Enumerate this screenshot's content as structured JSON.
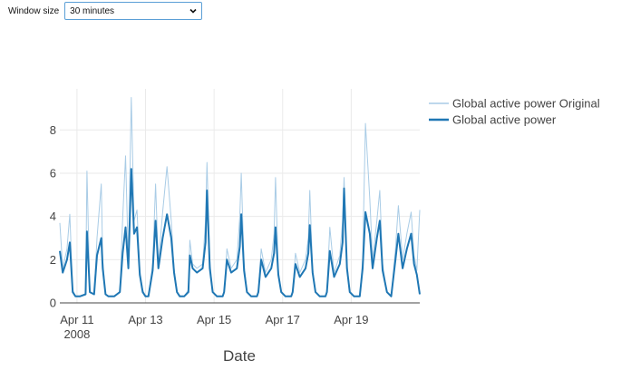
{
  "controls": {
    "window_size_label": "Window size",
    "window_size_value": "30 minutes"
  },
  "colors": {
    "original": "#a9cce6",
    "smoothed": "#1f77b4",
    "grid": "#eaeaea",
    "zero_line": "#444444"
  },
  "chart_data": {
    "type": "line",
    "title": "",
    "xlabel": "Date",
    "ylabel": "",
    "x_range": [
      "2008-04-10T12:00",
      "2008-04-21T00:00"
    ],
    "ylim": [
      0,
      9.9
    ],
    "x_ticks": [
      {
        "date": "2008-04-11",
        "label": "Apr 11",
        "sublabel": "2008"
      },
      {
        "date": "2008-04-13",
        "label": "Apr 13",
        "sublabel": ""
      },
      {
        "date": "2008-04-15",
        "label": "Apr 15",
        "sublabel": ""
      },
      {
        "date": "2008-04-17",
        "label": "Apr 17",
        "sublabel": ""
      },
      {
        "date": "2008-04-19",
        "label": "Apr 19",
        "sublabel": ""
      }
    ],
    "y_ticks": [
      0,
      2,
      4,
      6,
      8
    ],
    "grid": true,
    "legend_position": "top-right",
    "series": [
      {
        "name": "Global active power Original",
        "x": [
          "2008-04-10T12:00",
          "2008-04-10T14:00",
          "2008-04-10T17:00",
          "2008-04-10T19:00",
          "2008-04-10T21:00",
          "2008-04-10T23:00",
          "2008-04-11T02:00",
          "2008-04-11T06:00",
          "2008-04-11T07:00",
          "2008-04-11T09:00",
          "2008-04-11T12:00",
          "2008-04-11T14:00",
          "2008-04-11T17:00",
          "2008-04-11T18:00",
          "2008-04-11T20:00",
          "2008-04-11T22:00",
          "2008-04-12T02:00",
          "2008-04-12T06:00",
          "2008-04-12T08:00",
          "2008-04-12T10:00",
          "2008-04-12T12:00",
          "2008-04-12T14:00",
          "2008-04-12T16:00",
          "2008-04-12T18:00",
          "2008-04-12T20:00",
          "2008-04-12T22:00",
          "2008-04-13T00:00",
          "2008-04-13T02:00",
          "2008-04-13T05:00",
          "2008-04-13T07:00",
          "2008-04-13T09:00",
          "2008-04-13T12:00",
          "2008-04-13T15:00",
          "2008-04-13T18:00",
          "2008-04-13T20:00",
          "2008-04-13T22:00",
          "2008-04-14T00:00",
          "2008-04-14T03:00",
          "2008-04-14T06:00",
          "2008-04-14T07:00",
          "2008-04-14T09:00",
          "2008-04-14T12:00",
          "2008-04-14T16:00",
          "2008-04-14T18:00",
          "2008-04-14T19:00",
          "2008-04-14T21:00",
          "2008-04-14T23:00",
          "2008-04-15T02:00",
          "2008-04-15T06:00",
          "2008-04-15T07:00",
          "2008-04-15T09:00",
          "2008-04-15T12:00",
          "2008-04-15T16:00",
          "2008-04-15T18:00",
          "2008-04-15T19:00",
          "2008-04-15T21:00",
          "2008-04-15T23:00",
          "2008-04-16T02:00",
          "2008-04-16T06:00",
          "2008-04-16T07:00",
          "2008-04-16T09:00",
          "2008-04-16T12:00",
          "2008-04-16T16:00",
          "2008-04-16T18:00",
          "2008-04-16T19:00",
          "2008-04-16T21:00",
          "2008-04-16T23:00",
          "2008-04-17T02:00",
          "2008-04-17T06:00",
          "2008-04-17T07:00",
          "2008-04-17T09:00",
          "2008-04-17T12:00",
          "2008-04-17T16:00",
          "2008-04-17T18:00",
          "2008-04-17T19:00",
          "2008-04-17T21:00",
          "2008-04-17T23:00",
          "2008-04-18T02:00",
          "2008-04-18T06:00",
          "2008-04-18T07:00",
          "2008-04-18T09:00",
          "2008-04-18T12:00",
          "2008-04-18T16:00",
          "2008-04-18T18:00",
          "2008-04-18T19:00",
          "2008-04-18T21:00",
          "2008-04-18T23:00",
          "2008-04-19T02:00",
          "2008-04-19T06:00",
          "2008-04-19T08:00",
          "2008-04-19T10:00",
          "2008-04-19T13:00",
          "2008-04-19T15:00",
          "2008-04-19T18:00",
          "2008-04-19T20:00",
          "2008-04-19T22:00",
          "2008-04-20T01:00",
          "2008-04-20T04:00",
          "2008-04-20T07:00",
          "2008-04-20T09:00",
          "2008-04-20T12:00",
          "2008-04-20T15:00",
          "2008-04-20T18:00",
          "2008-04-20T20:00",
          "2008-04-20T22:00",
          "2008-04-21T00:00"
        ],
        "values": [
          3.7,
          1.6,
          2.5,
          4.1,
          0.6,
          0.3,
          0.3,
          0.4,
          6.1,
          0.5,
          0.4,
          3.0,
          5.5,
          2.0,
          0.4,
          0.3,
          0.3,
          0.5,
          3.9,
          6.8,
          1.9,
          9.5,
          3.8,
          4.3,
          1.5,
          0.6,
          0.3,
          0.3,
          1.8,
          5.5,
          1.8,
          4.2,
          6.3,
          3.8,
          1.6,
          0.5,
          0.3,
          0.3,
          0.6,
          2.9,
          1.8,
          1.6,
          1.8,
          3.8,
          6.5,
          2.0,
          0.5,
          0.3,
          0.3,
          0.5,
          2.5,
          1.6,
          2.0,
          4.0,
          6.0,
          1.8,
          0.5,
          0.3,
          0.3,
          0.6,
          2.5,
          1.4,
          2.0,
          3.2,
          5.8,
          1.5,
          0.5,
          0.3,
          0.3,
          0.5,
          2.3,
          1.4,
          2.0,
          3.0,
          5.2,
          1.6,
          0.5,
          0.3,
          0.3,
          0.6,
          3.5,
          1.4,
          2.2,
          3.8,
          5.8,
          1.8,
          0.5,
          0.3,
          0.3,
          2.0,
          8.3,
          4.8,
          2.0,
          3.8,
          5.2,
          1.8,
          0.5,
          0.3,
          2.5,
          4.5,
          2.0,
          3.2,
          4.2,
          2.2,
          1.5,
          4.3
        ]
      },
      {
        "name": "Global active power",
        "x": [
          "2008-04-10T12:00",
          "2008-04-10T14:00",
          "2008-04-10T17:00",
          "2008-04-10T19:00",
          "2008-04-10T21:00",
          "2008-04-10T23:00",
          "2008-04-11T02:00",
          "2008-04-11T06:00",
          "2008-04-11T07:00",
          "2008-04-11T09:00",
          "2008-04-11T12:00",
          "2008-04-11T14:00",
          "2008-04-11T17:00",
          "2008-04-11T18:00",
          "2008-04-11T20:00",
          "2008-04-11T22:00",
          "2008-04-12T02:00",
          "2008-04-12T06:00",
          "2008-04-12T08:00",
          "2008-04-12T10:00",
          "2008-04-12T12:00",
          "2008-04-12T14:00",
          "2008-04-12T16:00",
          "2008-04-12T18:00",
          "2008-04-12T20:00",
          "2008-04-12T22:00",
          "2008-04-13T00:00",
          "2008-04-13T02:00",
          "2008-04-13T05:00",
          "2008-04-13T07:00",
          "2008-04-13T09:00",
          "2008-04-13T12:00",
          "2008-04-13T15:00",
          "2008-04-13T18:00",
          "2008-04-13T20:00",
          "2008-04-13T22:00",
          "2008-04-14T00:00",
          "2008-04-14T03:00",
          "2008-04-14T06:00",
          "2008-04-14T07:00",
          "2008-04-14T09:00",
          "2008-04-14T12:00",
          "2008-04-14T16:00",
          "2008-04-14T18:00",
          "2008-04-14T19:00",
          "2008-04-14T21:00",
          "2008-04-14T23:00",
          "2008-04-15T02:00",
          "2008-04-15T06:00",
          "2008-04-15T07:00",
          "2008-04-15T09:00",
          "2008-04-15T12:00",
          "2008-04-15T16:00",
          "2008-04-15T18:00",
          "2008-04-15T19:00",
          "2008-04-15T21:00",
          "2008-04-15T23:00",
          "2008-04-16T02:00",
          "2008-04-16T06:00",
          "2008-04-16T07:00",
          "2008-04-16T09:00",
          "2008-04-16T12:00",
          "2008-04-16T16:00",
          "2008-04-16T18:00",
          "2008-04-16T19:00",
          "2008-04-16T21:00",
          "2008-04-16T23:00",
          "2008-04-17T02:00",
          "2008-04-17T06:00",
          "2008-04-17T07:00",
          "2008-04-17T09:00",
          "2008-04-17T12:00",
          "2008-04-17T16:00",
          "2008-04-17T18:00",
          "2008-04-17T19:00",
          "2008-04-17T21:00",
          "2008-04-17T23:00",
          "2008-04-18T02:00",
          "2008-04-18T06:00",
          "2008-04-18T07:00",
          "2008-04-18T09:00",
          "2008-04-18T12:00",
          "2008-04-18T16:00",
          "2008-04-18T18:00",
          "2008-04-18T19:00",
          "2008-04-18T21:00",
          "2008-04-18T23:00",
          "2008-04-19T02:00",
          "2008-04-19T06:00",
          "2008-04-19T08:00",
          "2008-04-19T10:00",
          "2008-04-19T13:00",
          "2008-04-19T15:00",
          "2008-04-19T18:00",
          "2008-04-19T20:00",
          "2008-04-19T22:00",
          "2008-04-20T01:00",
          "2008-04-20T04:00",
          "2008-04-20T07:00",
          "2008-04-20T09:00",
          "2008-04-20T12:00",
          "2008-04-20T15:00",
          "2008-04-20T18:00",
          "2008-04-20T20:00",
          "2008-04-20T22:00",
          "2008-04-21T00:00"
        ],
        "values": [
          2.4,
          1.4,
          2.0,
          2.8,
          0.5,
          0.3,
          0.3,
          0.4,
          3.3,
          0.5,
          0.4,
          2.2,
          3.0,
          1.6,
          0.4,
          0.3,
          0.3,
          0.5,
          2.3,
          3.5,
          1.6,
          6.2,
          3.2,
          3.5,
          1.3,
          0.5,
          0.3,
          0.3,
          1.5,
          3.8,
          1.6,
          3.0,
          4.1,
          3.0,
          1.4,
          0.5,
          0.3,
          0.3,
          0.5,
          2.2,
          1.6,
          1.4,
          1.6,
          2.8,
          5.2,
          1.6,
          0.5,
          0.3,
          0.3,
          0.5,
          2.0,
          1.4,
          1.6,
          2.6,
          4.1,
          1.5,
          0.5,
          0.3,
          0.3,
          0.5,
          2.0,
          1.2,
          1.6,
          2.3,
          3.5,
          1.3,
          0.5,
          0.3,
          0.3,
          0.5,
          1.8,
          1.2,
          1.6,
          2.3,
          3.6,
          1.4,
          0.5,
          0.3,
          0.3,
          0.5,
          2.4,
          1.2,
          1.8,
          2.8,
          5.3,
          1.6,
          0.5,
          0.3,
          0.3,
          1.6,
          4.2,
          3.2,
          1.6,
          3.0,
          3.8,
          1.5,
          0.5,
          0.3,
          2.0,
          3.2,
          1.6,
          2.5,
          3.2,
          1.8,
          1.3,
          0.4
        ]
      }
    ]
  }
}
